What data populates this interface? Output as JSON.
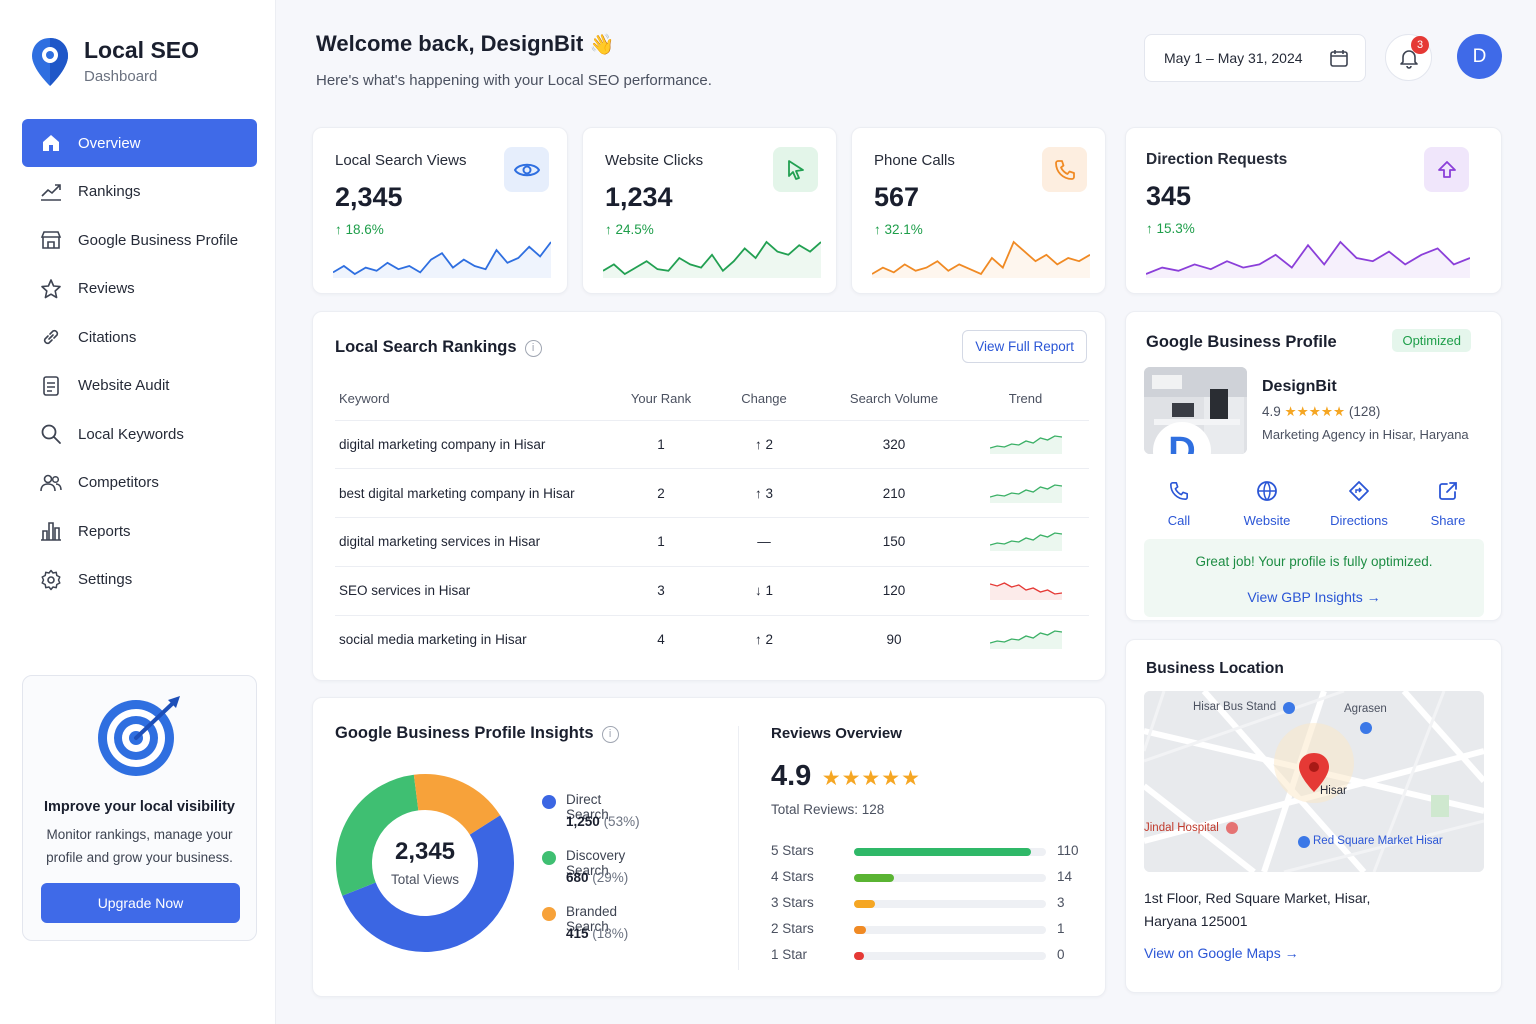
{
  "brand": {
    "title": "Local SEO",
    "subtitle": "Dashboard"
  },
  "sidebar": {
    "items": [
      {
        "label": "Overview",
        "icon": "home-icon",
        "active": true
      },
      {
        "label": "Rankings",
        "icon": "trend-line-icon"
      },
      {
        "label": "Google Business Profile",
        "icon": "store-icon"
      },
      {
        "label": "Reviews",
        "icon": "star-icon"
      },
      {
        "label": "Citations",
        "icon": "link-icon"
      },
      {
        "label": "Website Audit",
        "icon": "document-icon"
      },
      {
        "label": "Local Keywords",
        "icon": "search-icon"
      },
      {
        "label": "Competitors",
        "icon": "users-icon"
      },
      {
        "label": "Reports",
        "icon": "bar-chart-icon"
      },
      {
        "label": "Settings",
        "icon": "gear-icon"
      }
    ],
    "promo": {
      "title": "Improve your local visibility",
      "text": "Monitor rankings, manage your profile and grow your business.",
      "button": "Upgrade Now"
    }
  },
  "header": {
    "welcome": "Welcome back, DesignBit",
    "wave": "👋",
    "subtitle": "Here's what's happening with your Local SEO performance.",
    "date_range": "May 1 – May 31, 2024",
    "notification_count": "3",
    "avatar_initial": "D"
  },
  "stats": [
    {
      "label": "Local Search Views",
      "value": "2,345",
      "change": "↑ 18.6%",
      "icon": "eye-icon",
      "color": "#2f6fe0",
      "bg": "#e6eefc",
      "spark": [
        6,
        10,
        5,
        9,
        7,
        12,
        8,
        10,
        6,
        14,
        18,
        9,
        14,
        10,
        8,
        20,
        12,
        15,
        22,
        16,
        25
      ]
    },
    {
      "label": "Website Clicks",
      "value": "1,234",
      "change": "↑ 24.5%",
      "icon": "cursor-icon",
      "color": "#22a052",
      "bg": "#e3f5e9",
      "spark": [
        8,
        12,
        6,
        10,
        14,
        9,
        8,
        16,
        12,
        10,
        18,
        8,
        14,
        22,
        16,
        26,
        20,
        18,
        24,
        20,
        26
      ]
    },
    {
      "label": "Phone Calls",
      "value": "567",
      "change": "↑ 32.1%",
      "icon": "phone-icon",
      "color": "#f08a24",
      "bg": "#fdeee0",
      "spark": [
        6,
        10,
        7,
        12,
        8,
        10,
        14,
        8,
        12,
        9,
        6,
        16,
        10,
        26,
        20,
        14,
        18,
        12,
        16,
        14,
        18
      ]
    },
    {
      "label": "Direction Requests",
      "value": "345",
      "change": "↑ 15.3%",
      "icon": "direction-arrow-icon",
      "color": "#8b3fd9",
      "bg": "#f0e6fb",
      "spark": [
        6,
        10,
        8,
        12,
        9,
        14,
        10,
        12,
        18,
        10,
        24,
        12,
        26,
        16,
        14,
        20,
        12,
        18,
        22,
        12,
        16
      ]
    }
  ],
  "rankings": {
    "title": "Local Search Rankings",
    "button": "View Full Report",
    "columns": [
      "Keyword",
      "Your Rank",
      "Change",
      "Search Volume",
      "Trend"
    ],
    "rows": [
      {
        "keyword": "digital marketing company in Hisar",
        "rank": "1",
        "change": "↑ 2",
        "dir": "up",
        "volume": "320"
      },
      {
        "keyword": "best digital marketing company in Hisar",
        "rank": "2",
        "change": "↑ 3",
        "dir": "up",
        "volume": "210"
      },
      {
        "keyword": "digital marketing services in Hisar",
        "rank": "1",
        "change": "—",
        "dir": "flat",
        "volume": "150"
      },
      {
        "keyword": "SEO services in Hisar",
        "rank": "3",
        "change": "↓ 1",
        "dir": "down",
        "volume": "120"
      },
      {
        "keyword": "social media marketing in Hisar",
        "rank": "4",
        "change": "↑ 2",
        "dir": "up",
        "volume": "90"
      }
    ]
  },
  "insights": {
    "title": "Google Business Profile Insights",
    "total": "2,345",
    "total_label": "Total Views",
    "segments": [
      {
        "name": "Direct Search",
        "value": "1,250",
        "pct": "(53%)",
        "share": 53,
        "color": "#3b66e3"
      },
      {
        "name": "Discovery Search",
        "value": "680",
        "pct": "(29%)",
        "share": 29,
        "color": "#3fbf72"
      },
      {
        "name": "Branded Search",
        "value": "415",
        "pct": "(18%)",
        "share": 18,
        "color": "#f7a23a"
      }
    ]
  },
  "reviews": {
    "title": "Reviews Overview",
    "rating": "4.9",
    "stars": "★★★★★",
    "total": "Total Reviews: 128",
    "rows": [
      {
        "label": "5 Stars",
        "count": "110",
        "share": 0.92,
        "color": "#2fb868"
      },
      {
        "label": "4 Stars",
        "count": "14",
        "share": 0.21,
        "color": "#5ab433"
      },
      {
        "label": "3 Stars",
        "count": "3",
        "share": 0.11,
        "color": "#f5a623"
      },
      {
        "label": "2 Stars",
        "count": "1",
        "share": 0.06,
        "color": "#f08a24"
      },
      {
        "label": "1 Star",
        "count": "0",
        "share": 0.05,
        "color": "#e53935"
      }
    ]
  },
  "gbp": {
    "title": "Google Business Profile",
    "badge": "Optimized",
    "name": "DesignBit",
    "rating": "4.9",
    "stars": "★★★★★",
    "reviews": "(128)",
    "desc": "Marketing Agency in Hisar, Haryana",
    "logo_letter": "D",
    "actions": [
      {
        "label": "Call",
        "icon": "phone-icon"
      },
      {
        "label": "Website",
        "icon": "globe-icon"
      },
      {
        "label": "Directions",
        "icon": "directions-icon"
      },
      {
        "label": "Share",
        "icon": "share-icon"
      }
    ],
    "ok_text": "Great job! Your profile is fully optimized.",
    "ok_link": "View GBP Insights →"
  },
  "location": {
    "title": "Business Location",
    "map_labels": [
      "Hisar Bus Stand",
      "Agrasen",
      "Hisar",
      "Jindal Hospital",
      "Red Square Market Hisar"
    ],
    "address": "1st Floor, Red Square Market, Hisar, Haryana 125001",
    "link": "View on Google Maps →"
  }
}
